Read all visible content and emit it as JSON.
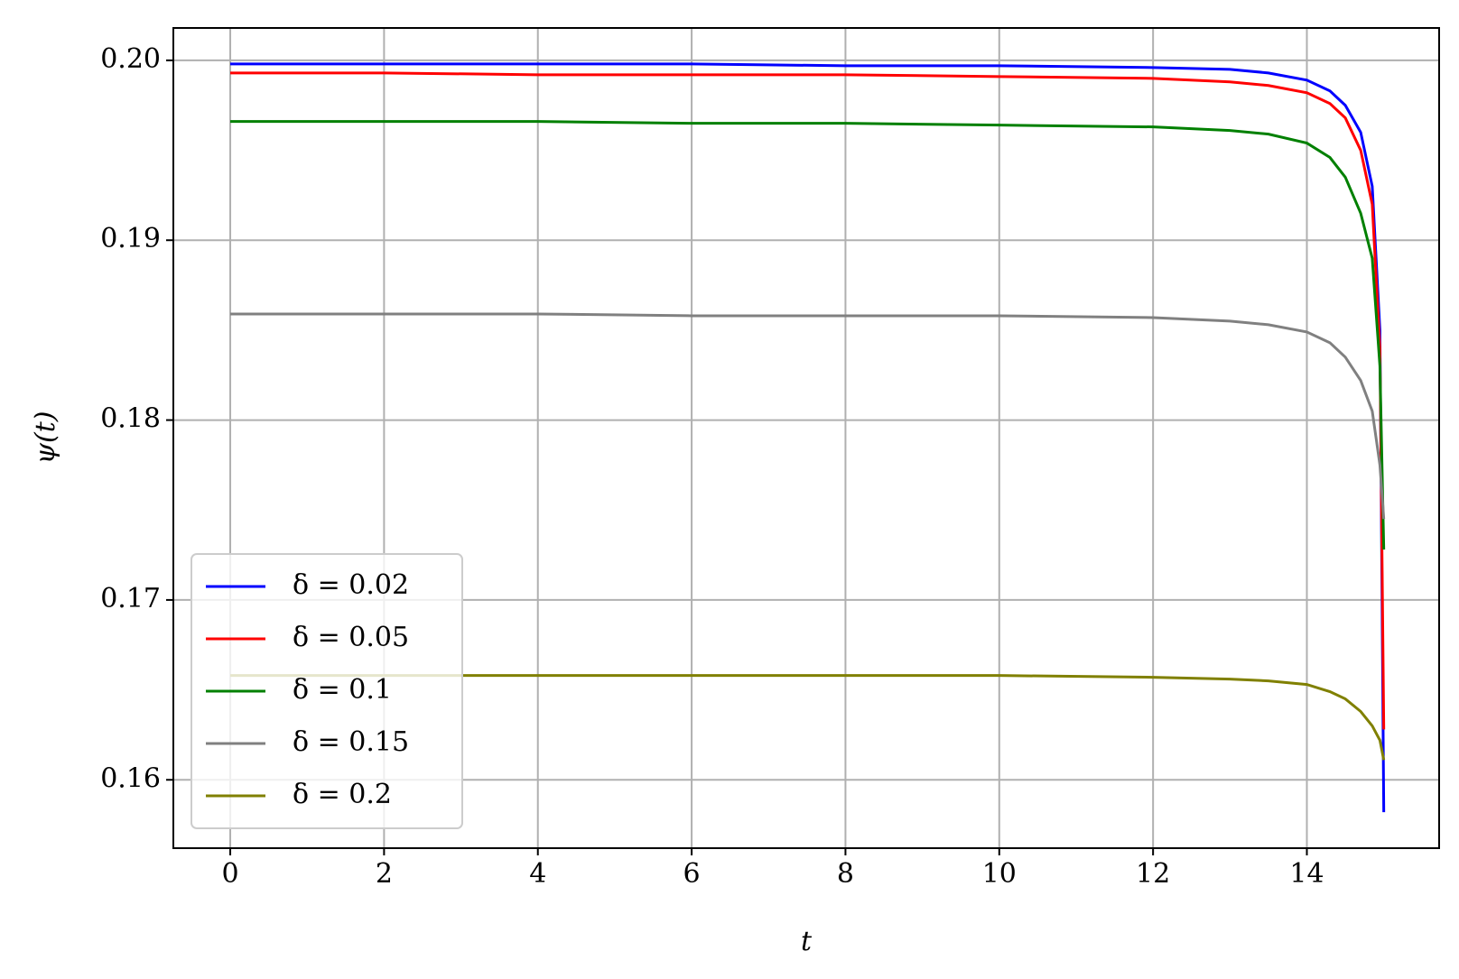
{
  "chart_data": {
    "type": "line",
    "xlabel": "t",
    "ylabel": "ψ(t)",
    "x": [
      0,
      2,
      4,
      6,
      8,
      10,
      12,
      13,
      13.5,
      14,
      14.3,
      14.5,
      14.7,
      14.85,
      14.95,
      15
    ],
    "series": [
      {
        "name": "δ = 0.02",
        "color": "#0000ff",
        "values": [
          0.1998,
          0.1998,
          0.1998,
          0.1998,
          0.1997,
          0.1997,
          0.1996,
          0.1995,
          0.1993,
          0.1989,
          0.1983,
          0.1975,
          0.196,
          0.193,
          0.185,
          0.1582
        ]
      },
      {
        "name": "δ = 0.05",
        "color": "#ff0000",
        "values": [
          0.1993,
          0.1993,
          0.1992,
          0.1992,
          0.1992,
          0.1991,
          0.199,
          0.1988,
          0.1986,
          0.1982,
          0.1976,
          0.1968,
          0.195,
          0.192,
          0.184,
          0.1628
        ]
      },
      {
        "name": "δ = 0.1",
        "color": "#008000",
        "values": [
          0.1966,
          0.1966,
          0.1966,
          0.1965,
          0.1965,
          0.1964,
          0.1963,
          0.1961,
          0.1959,
          0.1954,
          0.1946,
          0.1935,
          0.1915,
          0.189,
          0.183,
          0.1728
        ]
      },
      {
        "name": "δ = 0.15",
        "color": "#808080",
        "values": [
          0.1859,
          0.1859,
          0.1859,
          0.1858,
          0.1858,
          0.1858,
          0.1857,
          0.1855,
          0.1853,
          0.1849,
          0.1843,
          0.1835,
          0.1822,
          0.1805,
          0.1775,
          0.1745
        ]
      },
      {
        "name": "δ = 0.2",
        "color": "#808000",
        "values": [
          0.1658,
          0.1658,
          0.1658,
          0.1658,
          0.1658,
          0.1658,
          0.1657,
          0.1656,
          0.1655,
          0.1653,
          0.1649,
          0.1645,
          0.1638,
          0.163,
          0.1622,
          0.1611
        ]
      }
    ],
    "xlim": [
      -0.74,
      15.72
    ],
    "ylim": [
      0.1562,
      0.2018
    ],
    "xticks": [
      0,
      2,
      4,
      6,
      8,
      10,
      12,
      14
    ],
    "yticks": [
      0.16,
      0.17,
      0.18,
      0.19,
      {
        "value": 0.2,
        "label": "0.20"
      }
    ],
    "grid": true,
    "legend": "lower left"
  }
}
